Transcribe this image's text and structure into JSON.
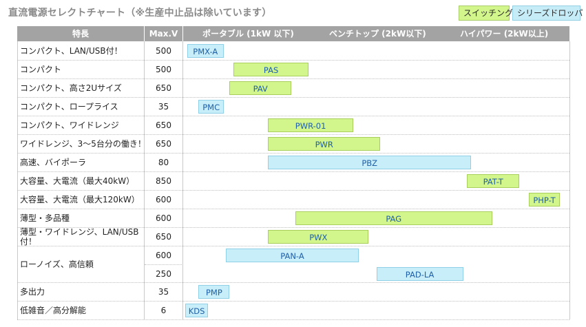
{
  "title": "直流電源セレクトチャート（※生産中止品は除いています）",
  "legend": {
    "switching": "スイッチング",
    "series": "シリーズドロッパ"
  },
  "header": {
    "feature": "特長",
    "max_v": "Max.V",
    "ranges": [
      "ポータブル (1kW 以下)",
      "ベンチトップ (2kW以下)",
      "ハイパワー (2kW以上)"
    ]
  },
  "rows": [
    {
      "feature": "コンパクト、LAN/USB付！",
      "items": [
        {
          "maxv": "500",
          "bar": "PMX-A",
          "type": "series",
          "start": 0.01,
          "end": 0.105
        }
      ]
    },
    {
      "feature": "コンパクト",
      "items": [
        {
          "maxv": "500",
          "bar": "PAS",
          "type": "switching",
          "start": 0.13,
          "end": 0.325
        }
      ]
    },
    {
      "feature": "コンパクト、高さ2Uサイズ",
      "items": [
        {
          "maxv": "650",
          "bar": "PAV",
          "type": "switching",
          "start": 0.12,
          "end": 0.28
        }
      ]
    },
    {
      "feature": "コンパクト、ロープライス",
      "items": [
        {
          "maxv": "35",
          "bar": "PMC",
          "type": "series",
          "start": 0.04,
          "end": 0.105
        }
      ]
    },
    {
      "feature": "コンパクト、ワイドレンジ",
      "items": [
        {
          "maxv": "650",
          "bar": "PWR-01",
          "type": "switching",
          "start": 0.22,
          "end": 0.44
        }
      ]
    },
    {
      "feature": "ワイドレンジ、3～5台分の働き！",
      "items": [
        {
          "maxv": "650",
          "bar": "PWR",
          "type": "switching",
          "start": 0.22,
          "end": 0.51
        }
      ]
    },
    {
      "feature": "高速、バイポーラ",
      "items": [
        {
          "maxv": "80",
          "bar": "PBZ",
          "type": "series",
          "start": 0.22,
          "end": 0.745
        }
      ]
    },
    {
      "feature": "大容量、大電流（最大40kW）",
      "items": [
        {
          "maxv": "850",
          "bar": "PAT-T",
          "type": "switching",
          "start": 0.735,
          "end": 0.87
        }
      ]
    },
    {
      "feature": "大容量、大電流（最大120kW）",
      "items": [
        {
          "maxv": "600",
          "bar": "PHP-T",
          "type": "switching",
          "start": 0.895,
          "end": 0.975
        }
      ]
    },
    {
      "feature": "薄型・多品種",
      "items": [
        {
          "maxv": "600",
          "bar": "PAG",
          "type": "switching",
          "start": 0.29,
          "end": 0.8
        }
      ]
    },
    {
      "feature": "薄型・ワイドレンジ、LAN/USB付！",
      "items": [
        {
          "maxv": "650",
          "bar": "PWX",
          "type": "switching",
          "start": 0.22,
          "end": 0.48
        }
      ]
    },
    {
      "feature": "ローノイズ、高信頼",
      "items": [
        {
          "maxv": "600",
          "bar": "PAN-A",
          "type": "series",
          "start": 0.11,
          "end": 0.455
        },
        {
          "maxv": "250",
          "bar": "PAD-LA",
          "type": "series",
          "start": 0.5,
          "end": 0.725
        }
      ]
    },
    {
      "feature": "多出力",
      "items": [
        {
          "maxv": "35",
          "bar": "PMP",
          "type": "series",
          "start": 0.04,
          "end": 0.12
        }
      ]
    },
    {
      "feature": "低雑音／高分解能",
      "items": [
        {
          "maxv": "6",
          "bar": "KDS",
          "type": "series",
          "start": 0.005,
          "end": 0.065
        }
      ]
    }
  ]
}
